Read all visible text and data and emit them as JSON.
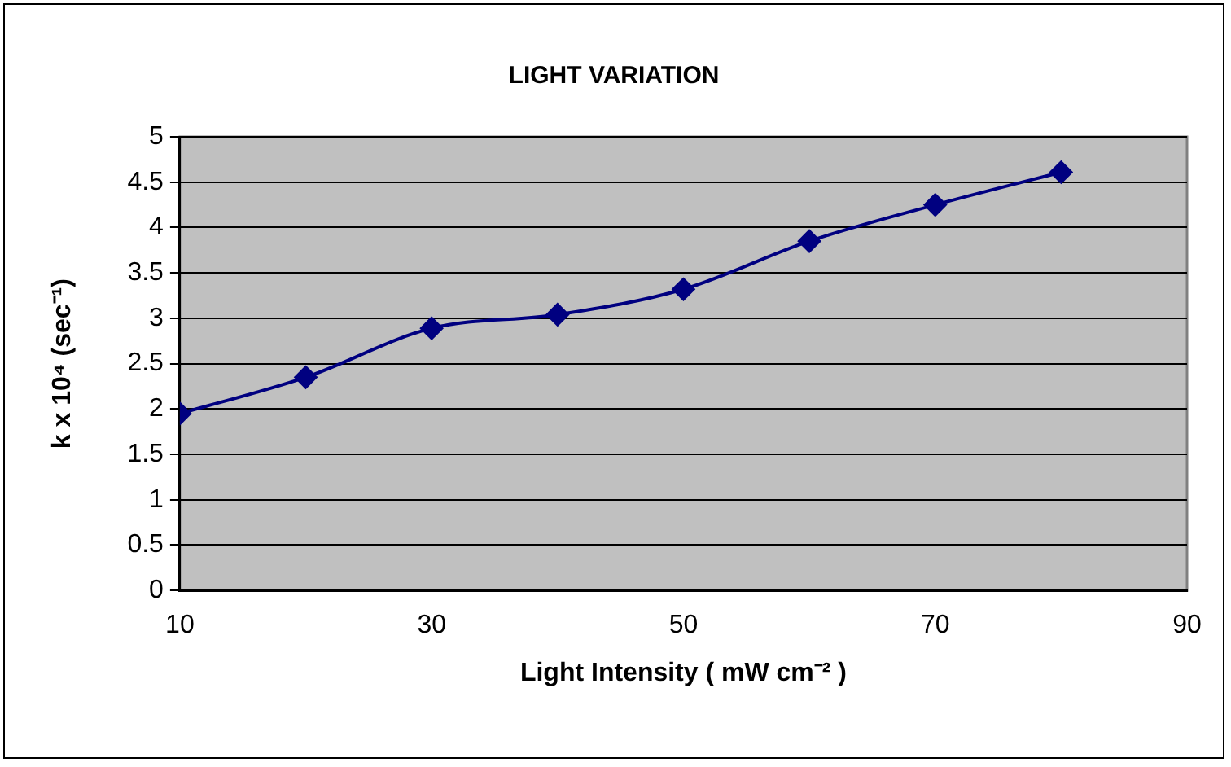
{
  "chart_data": {
    "type": "line",
    "title": "LIGHT VARIATION",
    "xlabel": "Light Intensity ( mW cm⁻² )",
    "ylabel": "k x 10⁴ (sec⁻¹)",
    "x": [
      10,
      20,
      30,
      40,
      50,
      60,
      70,
      80
    ],
    "series": [
      {
        "color": "#000080",
        "values": [
          1.95,
          2.35,
          2.89,
          3.04,
          3.32,
          3.85,
          4.25,
          4.61
        ]
      }
    ],
    "xlim": [
      10,
      90
    ],
    "xticks": [
      10,
      30,
      50,
      70,
      90
    ],
    "ylim": [
      0,
      5
    ],
    "yticks": [
      0,
      0.5,
      1,
      1.5,
      2,
      2.5,
      3,
      3.5,
      4,
      4.5,
      5
    ],
    "grid": "y",
    "legend": false,
    "marker": "diamond",
    "line_style": "solid"
  }
}
